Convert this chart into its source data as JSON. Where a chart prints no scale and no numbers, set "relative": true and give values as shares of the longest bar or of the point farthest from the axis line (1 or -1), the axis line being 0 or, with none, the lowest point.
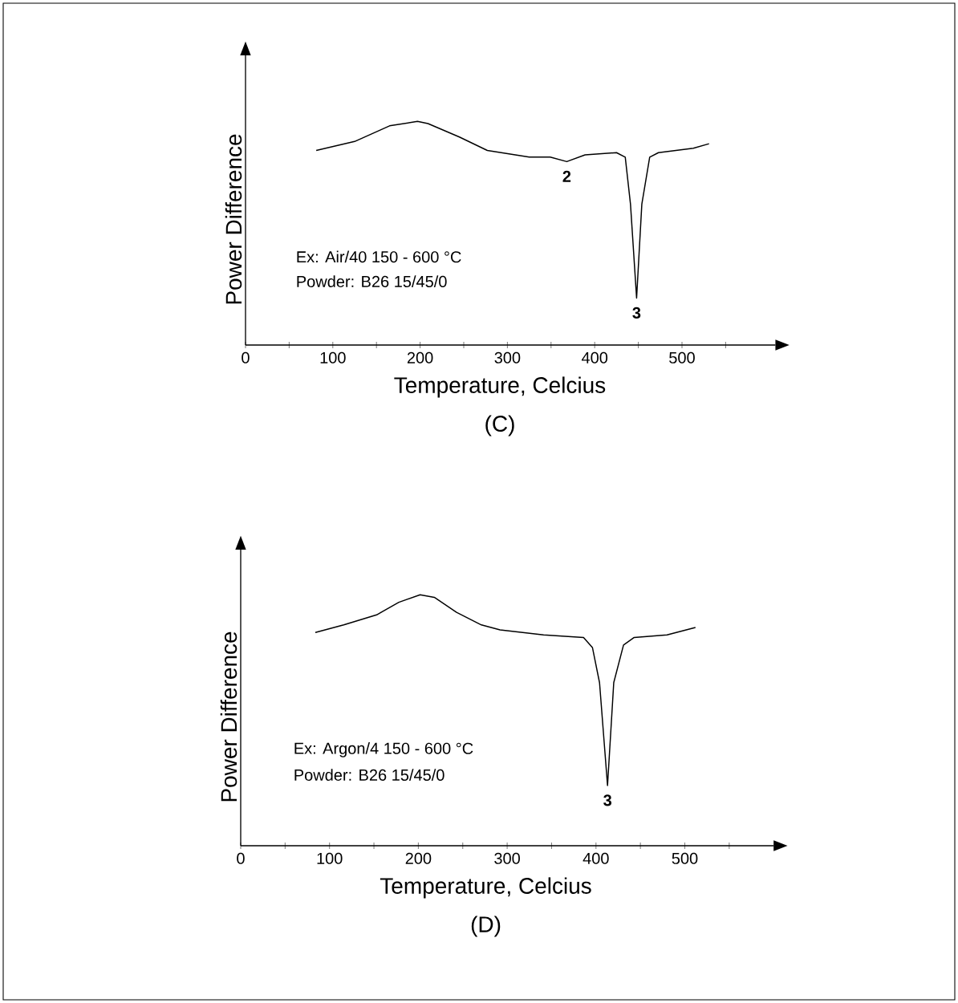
{
  "chart_data": [
    {
      "type": "line",
      "relative": true,
      "xlabel": "Temperature, Celcius",
      "ylabel": "Power Difference",
      "title": "(C)",
      "xlim": [
        0,
        607
      ],
      "xticks": [
        0,
        {
          "value": 50,
          "label": null
        },
        100,
        {
          "value": 150,
          "label": null
        },
        200,
        {
          "value": 250,
          "label": null
        },
        300,
        {
          "value": 350,
          "label": null
        },
        400,
        {
          "value": 450,
          "label": null
        },
        500,
        {
          "value": 550,
          "label": null
        }
      ],
      "series": [
        {
          "color": "#000000",
          "x": [
            81,
            125,
            165,
            197,
            209,
            245,
            277,
            325,
            349,
            368,
            389,
            425,
            435,
            441,
            448,
            454,
            463,
            473,
            513,
            531
          ],
          "values": [
            0.87,
            0.91,
            0.98,
            1,
            0.99,
            0.93,
            0.87,
            0.84,
            0.84,
            0.82,
            0.85,
            0.86,
            0.84,
            0.63,
            0.21,
            0.63,
            0.84,
            0.86,
            0.88,
            0.9
          ]
        }
      ],
      "annotations": [
        {
          "text": "2",
          "x": 368,
          "y": 0.82
        },
        {
          "text": "3",
          "x": 448,
          "y": 0.21
        },
        "Ex: Air/40 150 - 600 °C",
        "Powder: B26 15/45/0"
      ]
    },
    {
      "type": "line",
      "relative": true,
      "xlabel": "Temperature, Celcius",
      "ylabel": "Power Difference",
      "title": "(D)",
      "xlim": [
        0,
        600
      ],
      "xticks": [
        0,
        {
          "value": 50,
          "label": null
        },
        100,
        {
          "value": 150,
          "label": null
        },
        200,
        {
          "value": 250,
          "label": null
        },
        300,
        {
          "value": 350,
          "label": null
        },
        400,
        {
          "value": 450,
          "label": null
        },
        500,
        {
          "value": 550,
          "label": null
        }
      ],
      "series": [
        {
          "color": "#000000",
          "x": [
            84,
            116,
            153,
            178,
            202,
            218,
            243,
            271,
            292,
            341,
            386,
            396,
            404,
            413,
            420,
            431,
            443,
            480,
            512
          ],
          "values": [
            0.85,
            0.88,
            0.92,
            0.97,
            1,
            0.99,
            0.93,
            0.88,
            0.86,
            0.84,
            0.83,
            0.79,
            0.65,
            0.24,
            0.65,
            0.8,
            0.83,
            0.84,
            0.87
          ]
        }
      ],
      "annotations": [
        {
          "text": "3",
          "x": 413,
          "y": 0.24
        },
        "Ex: Argon/4 150 - 600 °C",
        "Powder: B26 15/45/0"
      ]
    }
  ]
}
